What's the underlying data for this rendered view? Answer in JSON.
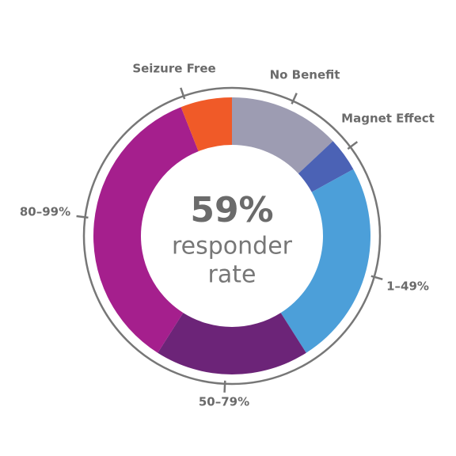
{
  "chart_data": {
    "type": "donut",
    "categories": [
      "No Benefit",
      "Magnet Effect",
      "1–49%",
      "50–79%",
      "80–99%",
      "Seizure Free"
    ],
    "values": [
      13,
      4,
      24,
      18,
      35,
      6
    ],
    "colors": [
      "#9d9cb2",
      "#4b62b5",
      "#4c9fd9",
      "#6c2478",
      "#a51f8d",
      "#f05a28"
    ],
    "center_value": "59%",
    "center_text": [
      "responder",
      "rate"
    ]
  }
}
